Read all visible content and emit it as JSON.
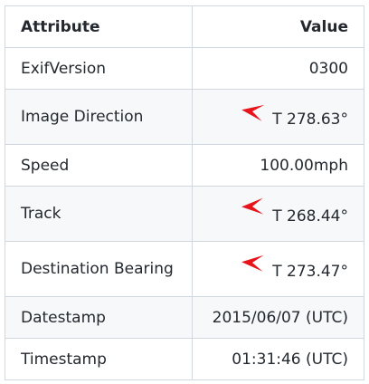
{
  "table": {
    "headers": {
      "attribute": "Attribute",
      "value": "Value"
    },
    "rows": [
      {
        "attribute": "ExifVersion",
        "value": "0300"
      },
      {
        "attribute": "Image Direction",
        "value": "T 278.63°",
        "arrow_icon": "red-heading-arrow-icon",
        "heading_deg": 278.63
      },
      {
        "attribute": "Speed",
        "value": "100.00mph"
      },
      {
        "attribute": "Track",
        "value": "T 268.44°",
        "arrow_icon": "red-heading-arrow-icon",
        "heading_deg": 268.44
      },
      {
        "attribute": "Destination Bearing",
        "value": "T 273.47°",
        "arrow_icon": "red-heading-arrow-icon",
        "heading_deg": 273.47
      },
      {
        "attribute": "Datestamp",
        "value": "2015/06/07 (UTC)"
      },
      {
        "attribute": "Timestamp",
        "value": "01:31:46 (UTC)"
      }
    ]
  },
  "colors": {
    "arrow": "#e8141c",
    "border": "#d0d7de",
    "stripe": "#f6f8fa",
    "text": "#24292f"
  }
}
